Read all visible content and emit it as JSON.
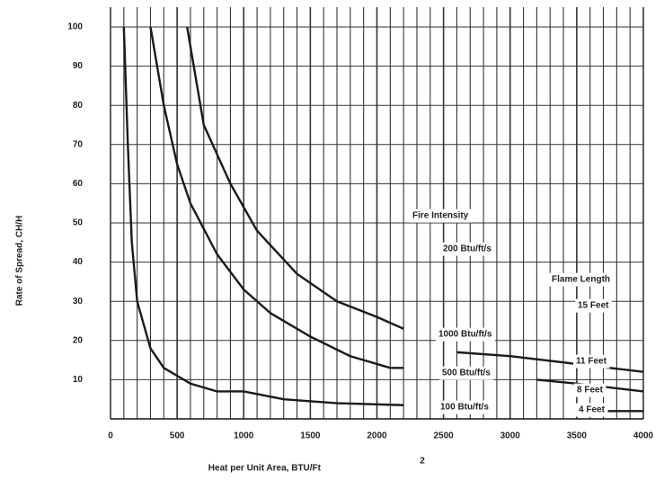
{
  "chart_data": {
    "type": "line",
    "x_label": "Heat per Unit Area, BTU/Ft",
    "x_label_superscript": "2",
    "y_label": "Rate of Spread, CH/H",
    "xlim": [
      0,
      4000
    ],
    "ylim": [
      0,
      100
    ],
    "xticks": [
      0,
      500,
      1000,
      1500,
      2000,
      2500,
      3000,
      3500,
      4000
    ],
    "yticks": [
      10,
      20,
      30,
      40,
      50,
      60,
      70,
      80,
      90,
      100
    ],
    "xgrid": [
      0,
      100,
      200,
      300,
      400,
      500,
      600,
      700,
      800,
      900,
      1000,
      1100,
      1200,
      1300,
      1400,
      1500,
      1600,
      1700,
      1800,
      1900,
      2000,
      2100,
      2200,
      2300,
      2400,
      2500,
      2600,
      2700,
      2800,
      2900,
      3000,
      3100,
      3200,
      3300,
      3400,
      3500,
      3600,
      3700,
      3800,
      3900,
      4000
    ],
    "grid": true,
    "series": [
      {
        "color": "#1a1a1a",
        "x": [
          100,
          130,
          160,
          200,
          300,
          400,
          600,
          800,
          1000,
          1300,
          1700,
          2200,
          2300,
          3500,
          4000
        ],
        "values": [
          100,
          70,
          45,
          30,
          18,
          13,
          9,
          7,
          7,
          5,
          4,
          3.5,
          null,
          2,
          2
        ]
      },
      {
        "color": "#1a1a1a",
        "x": [
          300,
          400,
          500,
          600,
          800,
          1000,
          1200,
          1500,
          1800,
          2100,
          2200,
          2300,
          3200,
          3500,
          4000
        ],
        "values": [
          100,
          80,
          65,
          55,
          42,
          33,
          27,
          21,
          16,
          13,
          13,
          null,
          10,
          9,
          7
        ]
      },
      {
        "color": "#1a1a1a",
        "x": [
          575,
          700,
          900,
          1100,
          1400,
          1700,
          2000,
          2200,
          2300,
          2600,
          3000,
          3500,
          4000
        ],
        "values": [
          100,
          75,
          60,
          48,
          37,
          30,
          26,
          23,
          null,
          17,
          16,
          14,
          12
        ]
      }
    ],
    "annotations": [
      "Fire Intensity",
      "200 Btu/ft/s",
      "Flame Length",
      "15 Feet",
      "1000 Btu/ft/s",
      "11 Feet",
      "500 Btu/ft/s",
      "8 Feet",
      "100 Btu/ft/s",
      "4 Feet"
    ]
  }
}
